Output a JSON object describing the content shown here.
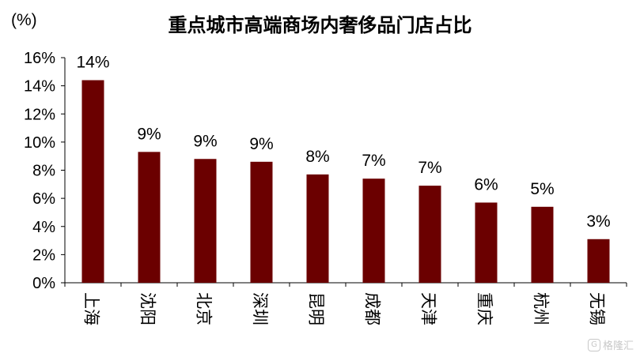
{
  "unit_label": "(%)",
  "title": "重点城市高端商场内奢侈品门店占比",
  "watermark": {
    "icon": "G",
    "text": "格隆汇"
  },
  "colors": {
    "bar": "#6b0000",
    "axis": "#000000"
  },
  "chart_data": {
    "type": "bar",
    "title": "重点城市高端商场内奢侈品门店占比",
    "ylabel": "(%)",
    "xlabel": "",
    "categories": [
      "上海",
      "沈阳",
      "北京",
      "深圳",
      "昆明",
      "成都",
      "天津",
      "重庆",
      "杭州",
      "无锡"
    ],
    "values": [
      14.4,
      9.3,
      8.8,
      8.6,
      7.7,
      7.4,
      6.9,
      5.7,
      5.4,
      3.1
    ],
    "data_labels": [
      "14%",
      "9%",
      "9%",
      "9%",
      "8%",
      "7%",
      "7%",
      "6%",
      "5%",
      "3%"
    ],
    "ylim": [
      0,
      16
    ],
    "yticks": [
      0,
      2,
      4,
      6,
      8,
      10,
      12,
      14,
      16
    ],
    "ytick_labels": [
      "0%",
      "2%",
      "4%",
      "6%",
      "8%",
      "10%",
      "12%",
      "14%",
      "16%"
    ],
    "grid": false,
    "legend": "none"
  }
}
